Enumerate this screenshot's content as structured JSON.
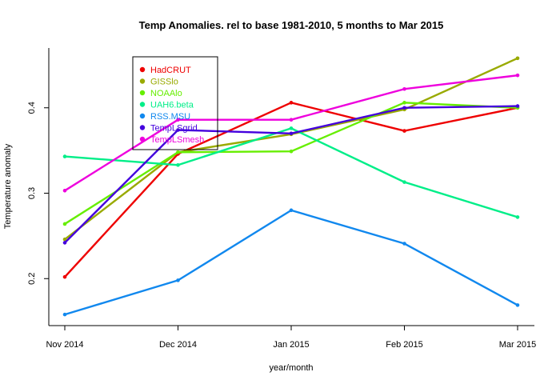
{
  "chart_data": {
    "type": "line",
    "title": "Temp Anomalies. rel to base 1981-2010, 5 months to Mar 2015",
    "xlabel": "year/month",
    "ylabel": "Temperature anomaly",
    "categories": [
      "Nov 2014",
      "Dec 2014",
      "Jan 2015",
      "Feb 2015",
      "Mar 2015"
    ],
    "ylim": [
      0.145,
      0.47
    ],
    "yticks": [
      0.2,
      0.3,
      0.4
    ],
    "grid": false,
    "legend_position": "top-left",
    "series": [
      {
        "name": "HadCRUT",
        "color": "#ee0000",
        "values": [
          0.202,
          0.346,
          0.406,
          0.373,
          0.4
        ]
      },
      {
        "name": "GISSlo",
        "color": "#99aa00",
        "values": [
          0.246,
          0.348,
          0.369,
          0.398,
          0.458
        ]
      },
      {
        "name": "NOAAlo",
        "color": "#66ee00",
        "values": [
          0.264,
          0.348,
          0.349,
          0.406,
          0.4
        ]
      },
      {
        "name": "UAH6.beta",
        "color": "#00ee88",
        "values": [
          0.343,
          0.333,
          0.376,
          0.313,
          0.272
        ]
      },
      {
        "name": "RSS.MSU",
        "color": "#1188ee",
        "values": [
          0.158,
          0.198,
          0.28,
          0.241,
          0.169
        ]
      },
      {
        "name": "TempLSgrid",
        "color": "#4400dd",
        "values": [
          0.242,
          0.374,
          0.37,
          0.4,
          0.402
        ]
      },
      {
        "name": "TempLSmesh",
        "color": "#ee00dd",
        "values": [
          0.303,
          0.386,
          0.386,
          0.422,
          0.438
        ]
      }
    ]
  }
}
